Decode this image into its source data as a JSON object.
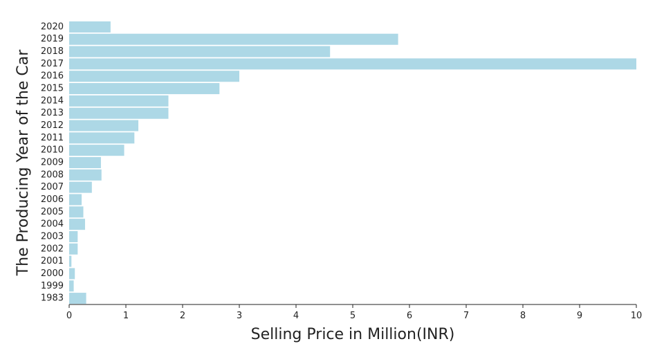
{
  "chart_data": {
    "type": "bar",
    "orientation": "horizontal",
    "title": "",
    "xlabel": "Selling Price in Million(INR)",
    "ylabel": "The Producing Year of the Car",
    "xlim": [
      0,
      10
    ],
    "x_ticks": [
      "0",
      "1",
      "2",
      "3",
      "4",
      "5",
      "6",
      "7",
      "8",
      "9",
      "10"
    ],
    "grid": false,
    "bar_color": "#add8e6",
    "categories": [
      "2020",
      "2019",
      "2018",
      "2017",
      "2016",
      "2015",
      "2014",
      "2013",
      "2012",
      "2011",
      "2010",
      "2009",
      "2008",
      "2007",
      "2006",
      "2005",
      "2004",
      "2003",
      "2002",
      "2001",
      "2000",
      "1999",
      "1983"
    ],
    "values": [
      0.73,
      5.8,
      4.6,
      10.0,
      3.0,
      2.65,
      1.75,
      1.75,
      1.22,
      1.15,
      0.97,
      0.56,
      0.57,
      0.4,
      0.22,
      0.25,
      0.28,
      0.15,
      0.15,
      0.04,
      0.1,
      0.08,
      0.3
    ]
  }
}
